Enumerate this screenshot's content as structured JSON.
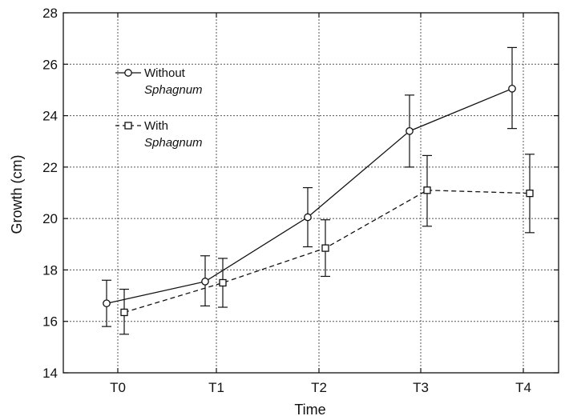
{
  "chart_data": {
    "type": "line",
    "xlabel": "Time",
    "ylabel": "Growth (cm)",
    "categories": [
      "T0",
      "T1",
      "T2",
      "T3",
      "T4"
    ],
    "ylim": [
      14,
      28
    ],
    "yticks": [
      14,
      16,
      18,
      20,
      22,
      24,
      26,
      28
    ],
    "grid": true,
    "legend_position": "top-left",
    "series": [
      {
        "name_line1": "Without",
        "name_line2": "Sphagnum",
        "marker": "circle",
        "line_style": "solid",
        "values": [
          16.7,
          17.55,
          20.05,
          23.4,
          25.05
        ],
        "err_low": [
          15.8,
          16.6,
          18.9,
          22.0,
          23.5
        ],
        "err_high": [
          17.6,
          18.55,
          21.2,
          24.8,
          26.65
        ]
      },
      {
        "name_line1": "With",
        "name_line2": "Sphagnum",
        "marker": "square",
        "line_style": "dashed",
        "values": [
          16.35,
          17.5,
          18.85,
          21.1,
          20.98
        ],
        "err_low": [
          15.5,
          16.55,
          17.75,
          19.7,
          19.45
        ],
        "err_high": [
          17.25,
          18.45,
          19.95,
          22.45,
          22.5
        ]
      }
    ]
  }
}
